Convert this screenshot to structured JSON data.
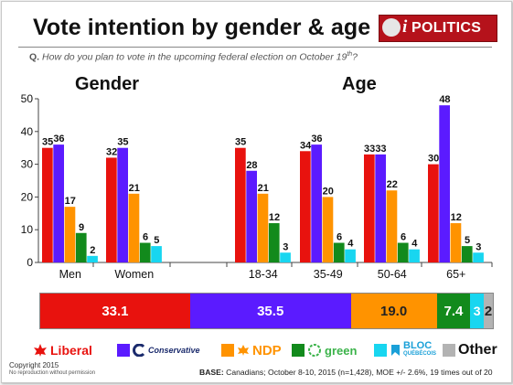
{
  "title": "Vote intention by gender & age",
  "logo": {
    "prefix": "i",
    "text": "POLITICS"
  },
  "question": {
    "label": "Q.",
    "text": "How do you plan to vote in the upcoming federal election on October 19",
    "suffix": "th",
    "end": "?"
  },
  "colors": {
    "liberal": "#e8120e",
    "conservative": "#5b1bff",
    "ndp": "#ff9300",
    "green": "#128a1c",
    "bloc": "#18d6f0",
    "other": "#b3b3b3"
  },
  "chart_data": {
    "type": "bar",
    "group_titles": [
      "Gender",
      "Age"
    ],
    "categories": [
      "Men",
      "Women",
      "18-34",
      "35-49",
      "50-64",
      "65+"
    ],
    "ylim": [
      0,
      50
    ],
    "yticks": [
      0,
      10,
      20,
      30,
      40,
      50
    ],
    "series": [
      {
        "name": "Liberal",
        "values": [
          35,
          32,
          35,
          34,
          33,
          30
        ]
      },
      {
        "name": "Conservative",
        "values": [
          36,
          35,
          28,
          36,
          33,
          48
        ]
      },
      {
        "name": "NDP",
        "values": [
          17,
          21,
          21,
          20,
          22,
          12
        ]
      },
      {
        "name": "green",
        "values": [
          9,
          6,
          12,
          6,
          6,
          5
        ]
      },
      {
        "name": "BLOC QUÉBÉCOIS",
        "values": [
          2,
          5,
          3,
          4,
          4,
          3
        ]
      }
    ],
    "summary": {
      "type": "stacked-bar",
      "segments": [
        {
          "label": "33.1",
          "value": 33.1,
          "color": "#e8120e"
        },
        {
          "label": "35.5",
          "value": 35.5,
          "color": "#5b1bff"
        },
        {
          "label": "19.0",
          "value": 19.0,
          "color": "#ff9300"
        },
        {
          "label": "7.4",
          "value": 7.4,
          "color": "#128a1c"
        },
        {
          "label": "3",
          "value": 3,
          "color": "#18d6f0"
        },
        {
          "label": "2",
          "value": 2,
          "color": "#b3b3b3"
        }
      ]
    }
  },
  "legend": {
    "liberal": "Liberal",
    "conservative": "Conservative",
    "ndp": "NDP",
    "green": "green",
    "bloc": "BLOC",
    "bloc_sub": "QUÉBÉCOIS",
    "other": "Other"
  },
  "footer": {
    "copyright": "Copyright 2015",
    "copyright_sub": "No reproduction without permission",
    "base_label": "BASE:",
    "base_text": "Canadians; October 8-10, 2015 (n=1,428), MOE +/- 2.6%, 19 times out of 20"
  }
}
